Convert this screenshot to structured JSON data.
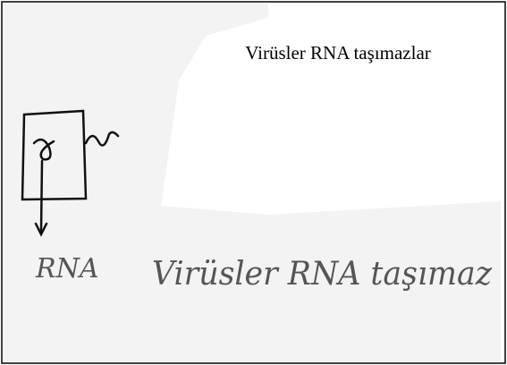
{
  "slide": {
    "title": "Virüsler RNA taşımazlar",
    "handwriting": {
      "label": "RNA",
      "sentence": "Virüsler RNA taşımaz"
    }
  }
}
